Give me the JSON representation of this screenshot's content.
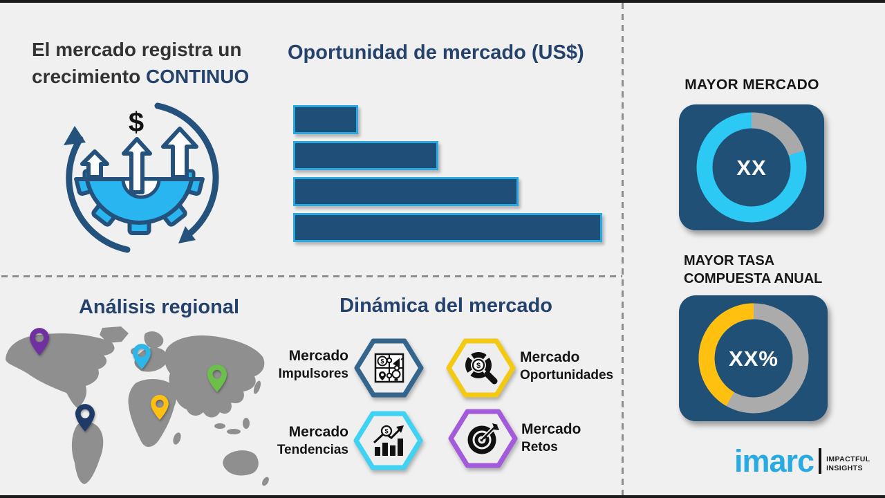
{
  "page": {
    "background": "#F0F0F1",
    "frame_bar_color": "#1B1B1B",
    "divider_color": "#8C8C8C"
  },
  "growth": {
    "heading_line1": "El mercado registra un",
    "heading_line2": "crecimiento",
    "heading_accent": "CONTINUO",
    "accent_color": "#24426B"
  },
  "opportunity": {
    "title": "Oportunidad de mercado (US$)"
  },
  "chart_data": [
    {
      "type": "bar",
      "title": "Oportunidad de mercado (US$)",
      "orientation": "horizontal",
      "categories": [
        "bar-1",
        "bar-2",
        "bar-3",
        "bar-4"
      ],
      "values_percent_of_max": [
        21,
        47,
        73,
        100
      ],
      "data_labels": false,
      "axis_labels": false,
      "bar_fill": "#1F4E79",
      "bar_border": "#29A8E0"
    },
    {
      "type": "pie",
      "subtype": "donut",
      "title": "MAYOR MERCADO",
      "center_label": "XX",
      "slices": [
        {
          "name": "largest-market-highlight",
          "value": 80,
          "color": "#2BC9F4"
        },
        {
          "name": "remainder",
          "value": 20,
          "color": "#A9A9A9"
        }
      ],
      "render": {
        "base_color": "#2BC9F4",
        "arc_color": "#A9A9A9",
        "arc_start_deg": 0,
        "arc_sweep_deg": 72
      }
    },
    {
      "type": "pie",
      "subtype": "donut",
      "title": "MAYOR TASA COMPUESTA ANUAL",
      "center_label": "XX%",
      "slices": [
        {
          "name": "cagr-highlight",
          "value": 42,
          "color": "#FFC010"
        },
        {
          "name": "remainder",
          "value": 58,
          "color": "#ABABAB"
        }
      ],
      "render": {
        "base_color": "#ABABAB",
        "arc_color": "#FFC010",
        "arc_start_deg": 210,
        "arc_sweep_deg": 150
      }
    }
  ],
  "right_panel": {
    "largest_market_title": "MAYOR MERCADO",
    "largest_market_value": "XX",
    "cagr_title_line1": "MAYOR TASA",
    "cagr_title_line2": "COMPUESTA ANUAL",
    "cagr_value": "XX%",
    "card_color": "#215077"
  },
  "regional": {
    "title": "Análisis regional",
    "map_color": "#8F8F8F",
    "pins": [
      {
        "name": "pin-north-america",
        "color": "#7030A0"
      },
      {
        "name": "pin-europe",
        "color": "#2BB7EA"
      },
      {
        "name": "pin-east-asia",
        "color": "#6CC04A"
      },
      {
        "name": "pin-africa-middle-east",
        "color": "#FFC010"
      },
      {
        "name": "pin-south-america",
        "color": "#1F3A67"
      }
    ]
  },
  "dynamics": {
    "title": "Dinámica del mercado",
    "items": [
      {
        "label_line1": "Mercado",
        "label_line2": "Impulsores",
        "hex_color": "#33658D",
        "icon": "puzzle-icon"
      },
      {
        "label_line1": "Mercado",
        "label_line2": "Oportunidades",
        "hex_color": "#F3C912",
        "icon": "magnifier-dollar-icon"
      },
      {
        "label_line1": "Mercado",
        "label_line2": "Tendencias",
        "hex_color": "#3FD2F2",
        "icon": "trend-chart-icon"
      },
      {
        "label_line1": "Mercado",
        "label_line2": "Retos",
        "hex_color": "#A35BDB",
        "icon": "target-dart-icon"
      }
    ]
  },
  "brand": {
    "logo_text": "imarc",
    "logo_color": "#29ABE2",
    "tagline_line1": "IMPACTFUL",
    "tagline_line2": "INSIGHTS"
  },
  "icons": {
    "dollar": "$"
  }
}
